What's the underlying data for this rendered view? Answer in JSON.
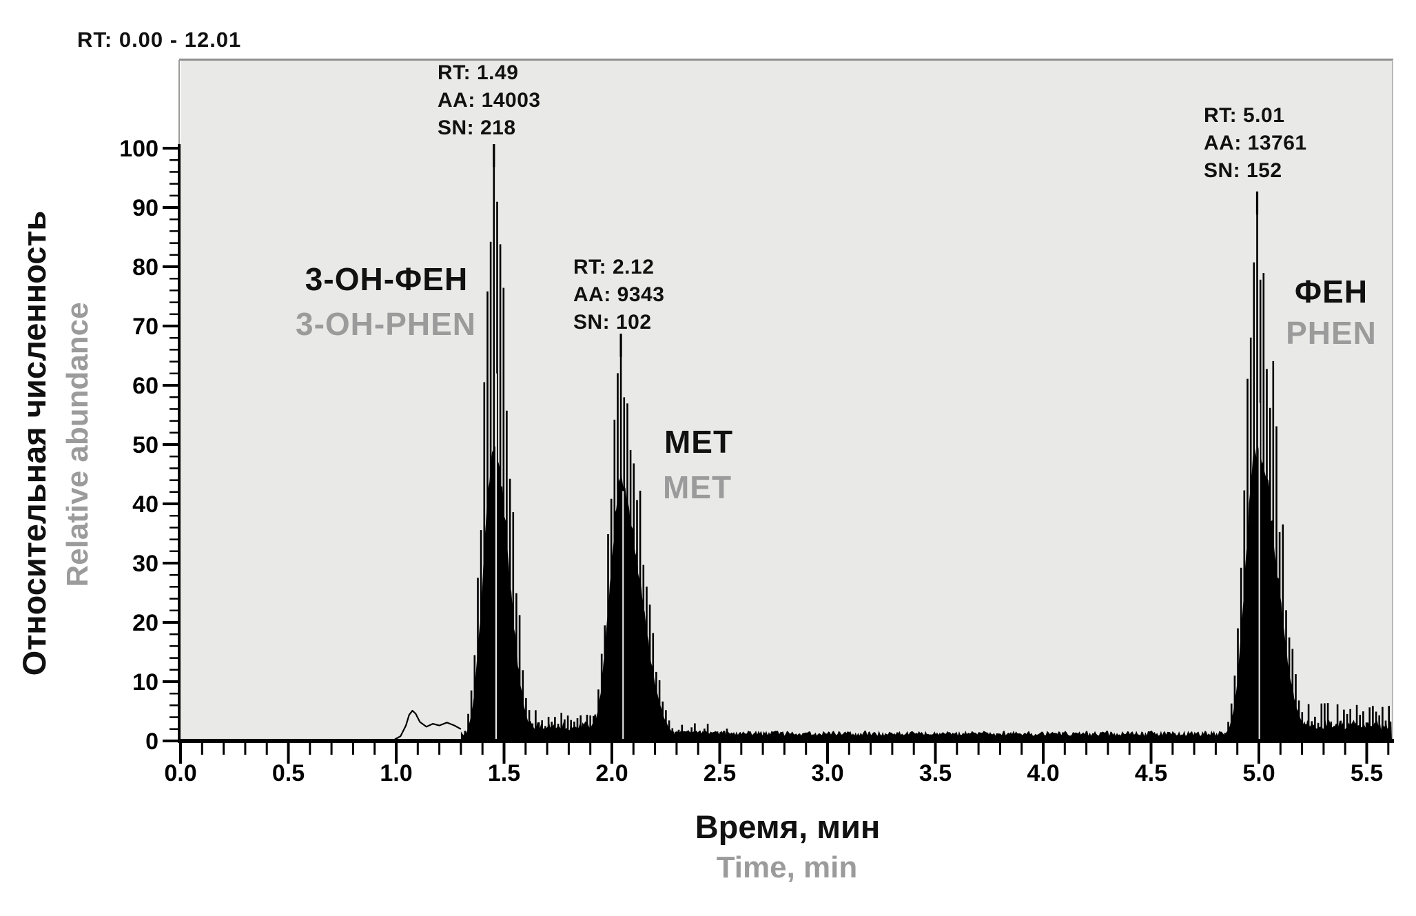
{
  "header": {
    "range_label": "RT: 0.00 - 12.01"
  },
  "axes": {
    "y_title_ru": "Относительная численность",
    "y_title_en": "Relative abundance",
    "x_title_ru": "Время, мин",
    "x_title_en": "Time, min",
    "x_tick_labels": [
      "0.0",
      "0.5",
      "1.0",
      "1.5",
      "2.0",
      "2.5",
      "3.0",
      "3.5",
      "4.0",
      "4.5",
      "5.0",
      "5.5"
    ],
    "y_tick_labels": [
      "0",
      "10",
      "20",
      "30",
      "40",
      "50",
      "60",
      "70",
      "80",
      "90",
      "100"
    ]
  },
  "colors": {
    "primary_text": "#111111",
    "secondary_text": "#9b9b9b",
    "plot_background": "#e9e9e8",
    "plot_border_top": "#909090",
    "plot_border_right": "#b9b9b8",
    "trace": "#000000"
  },
  "chart_data": {
    "type": "area",
    "title": "RT: 0.00 - 12.01",
    "xlabel_ru": "Время, мин",
    "xlabel_en": "Time, min",
    "ylabel_ru": "Относительная численность",
    "ylabel_en": "Relative abundance",
    "xlim": [
      0,
      5.62
    ],
    "ylim": [
      0,
      115
    ],
    "x_major_tick_step": 0.5,
    "x_minor_tick_step": 0.1,
    "y_major_tick_step": 10,
    "y_minor_tick_step": 2,
    "grid": false,
    "legend": false,
    "peaks": [
      {
        "label_ru": "3-ОН-ФЕН",
        "label_en": "3-OH-PHEN",
        "rt": 1.49,
        "area": 14003,
        "signal_to_noise": 218,
        "rt_label": "RT: 1.49",
        "aa_label": "AA: 14003",
        "sn_label": "SN: 218",
        "apex_time_plot": 1.453,
        "spike_height": 100,
        "body_height": 50,
        "sigma_left": 0.048,
        "sigma_right": 0.068,
        "tail_height": 4.6,
        "body_tail_height": 2.6,
        "tail_end": 1.955
      },
      {
        "label_ru": "МЕТ",
        "label_en": "MET",
        "rt": 2.12,
        "area": 9343,
        "signal_to_noise": 102,
        "rt_label": "RT: 2.12",
        "aa_label": "AA: 9343",
        "sn_label": "SN: 102",
        "apex_time_plot": 2.042,
        "spike_height": 68,
        "body_height": 43,
        "sigma_left": 0.052,
        "sigma_right": 0.092,
        "tail_height": 2.4,
        "body_tail_height": 1.4,
        "tail_end": 2.56
      },
      {
        "label_ru": "ФЕН",
        "label_en": "PHEN",
        "rt": 5.01,
        "area": 13761,
        "signal_to_noise": 152,
        "rt_label": "RT: 5.01",
        "aa_label": "AA: 13761",
        "sn_label": "SN: 152",
        "apex_time_plot": 4.992,
        "spike_height": 92,
        "body_height": 50,
        "sigma_left": 0.052,
        "sigma_right": 0.088,
        "tail_height": 5.6,
        "body_tail_height": 2.8,
        "tail_end": 5.62
      }
    ],
    "baseline_noise": {
      "fill_start": 1.3,
      "strip_height": 1.2,
      "pre_peak_bump_t": [
        0.99,
        1.02,
        1.045,
        1.06,
        1.075,
        1.09,
        1.11,
        1.14,
        1.17,
        1.2,
        1.235,
        1.27,
        1.3
      ],
      "pre_peak_bump_v": [
        0.2,
        0.8,
        2.6,
        4.4,
        5.1,
        4.6,
        3.2,
        2.4,
        2.9,
        2.6,
        3.1,
        2.6,
        2.0
      ]
    }
  }
}
